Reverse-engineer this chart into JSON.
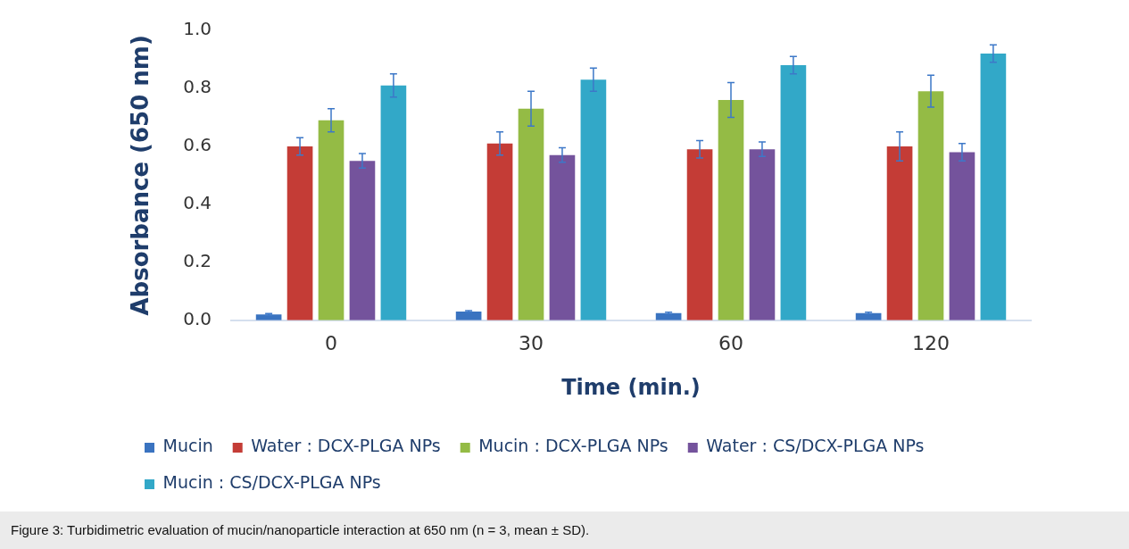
{
  "chart_data": {
    "type": "bar",
    "xlabel": "Time (min.)",
    "ylabel": "Absorbance (650 nm)",
    "categories": [
      "0",
      "30",
      "60",
      "120"
    ],
    "series": [
      {
        "name": "Mucin",
        "color": "#3a73c0",
        "values": [
          0.02,
          0.03,
          0.025,
          0.025
        ],
        "errors": [
          0.003,
          0.003,
          0.003,
          0.003
        ]
      },
      {
        "name": "Water : DCX-PLGA NPs",
        "color": "#c43c36",
        "values": [
          0.6,
          0.61,
          0.59,
          0.6
        ],
        "errors": [
          0.03,
          0.04,
          0.03,
          0.05
        ]
      },
      {
        "name": "Mucin : DCX-PLGA NPs",
        "color": "#94bb45",
        "values": [
          0.69,
          0.73,
          0.76,
          0.79
        ],
        "errors": [
          0.04,
          0.06,
          0.06,
          0.055
        ]
      },
      {
        "name": "Water : CS/DCX-PLGA NPs",
        "color": "#74539c",
        "values": [
          0.55,
          0.57,
          0.59,
          0.58
        ],
        "errors": [
          0.025,
          0.025,
          0.025,
          0.03
        ]
      },
      {
        "name": "Mucin : CS/DCX-PLGA NPs",
        "color": "#32a8c8",
        "values": [
          0.81,
          0.83,
          0.88,
          0.92
        ],
        "errors": [
          0.04,
          0.04,
          0.03,
          0.03
        ]
      }
    ],
    "ylim": [
      0,
      1.0
    ],
    "yticks": [
      {
        "value": 0,
        "label": "0.0"
      },
      0.2,
      0.4,
      0.6,
      0.8,
      {
        "value": 1,
        "label": "1.0"
      }
    ],
    "grid": false,
    "legend": "bottom",
    "annotations": [
      "Figure 3: Turbidimetric evaluation of mucin/nanoparticle interaction at 650 nm (n = 3, mean ± SD)."
    ]
  }
}
